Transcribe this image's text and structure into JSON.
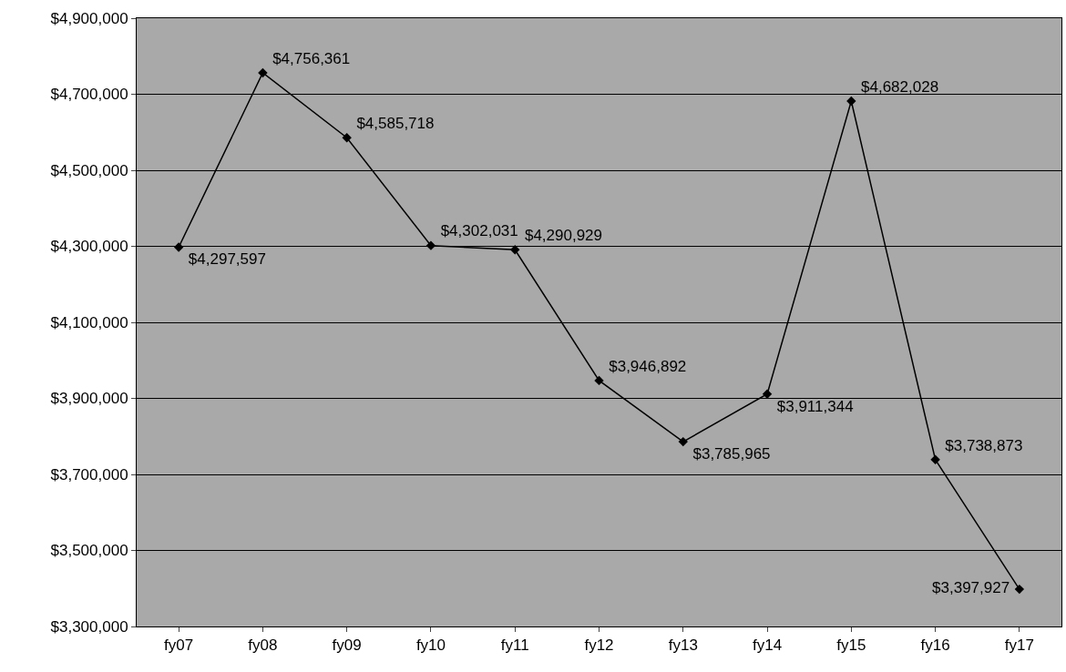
{
  "chart_data": {
    "type": "line",
    "categories": [
      "fy07",
      "fy08",
      "fy09",
      "fy10",
      "fy11",
      "fy12",
      "fy13",
      "fy14",
      "fy15",
      "fy16",
      "fy17"
    ],
    "values": [
      4297597,
      4756361,
      4585718,
      4302031,
      4290929,
      3946892,
      3785965,
      3911344,
      4682028,
      3738873,
      3397927
    ],
    "value_labels": [
      "$4,297,597",
      "$4,756,361",
      "$4,585,718",
      "$4,302,031",
      "$4,290,929",
      "$3,946,892",
      "$3,785,965",
      "$3,911,344",
      "$4,682,028",
      "$3,738,873",
      "$3,397,927"
    ],
    "color": "#000000",
    "ylim": [
      3300000,
      4900000
    ],
    "yticks": [
      {
        "value": 3300000,
        "label": "$3,300,000"
      },
      {
        "value": 3500000,
        "label": "$3,500,000"
      },
      {
        "value": 3700000,
        "label": "$3,700,000"
      },
      {
        "value": 3900000,
        "label": "$3,900,000"
      },
      {
        "value": 4100000,
        "label": "$4,100,000"
      },
      {
        "value": 4300000,
        "label": "$4,300,000"
      },
      {
        "value": 4500000,
        "label": "$4,500,000"
      },
      {
        "value": 4700000,
        "label": "$4,700,000"
      },
      {
        "value": 4900000,
        "label": "$4,900,000"
      }
    ],
    "grid": "y",
    "marker": "diamond",
    "line_style": "solid"
  }
}
